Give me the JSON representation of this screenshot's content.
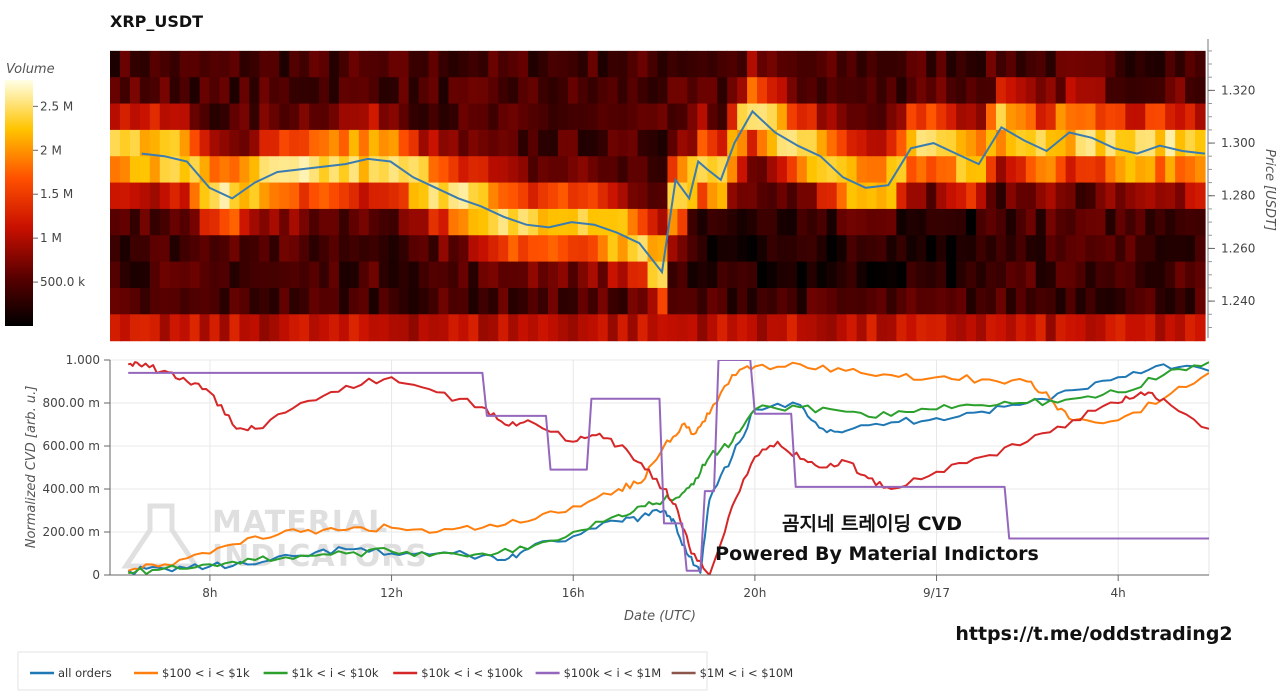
{
  "chart_data": [
    {
      "type": "heatmap",
      "title": "XRP_USDT",
      "ylabel": "Price [USDT]",
      "yticks": [
        1.32,
        1.3,
        1.28,
        1.26,
        1.24
      ],
      "ytick_labels": [
        "1.320",
        "1.300",
        "1.280",
        "1.260",
        "1.240"
      ],
      "ylim": [
        1.226,
        1.3395
      ],
      "price_bins": [
        1.33,
        1.32,
        1.31,
        1.3,
        1.29,
        1.28,
        1.27,
        1.26,
        1.25,
        1.24,
        1.23
      ],
      "colorbar": {
        "title": "Volume",
        "tick_values": [
          2500000,
          2000000,
          1500000,
          1000000,
          500000
        ],
        "tick_labels": [
          "2.5 M",
          "2 M",
          "1.5 M",
          "1 M",
          "500.0 k"
        ],
        "range": [
          0,
          2800000
        ]
      },
      "price_series": {
        "x": [
          6.5,
          7.0,
          7.5,
          8.0,
          8.5,
          9.0,
          9.5,
          10.0,
          10.5,
          11.0,
          11.5,
          12.0,
          12.5,
          13.0,
          13.5,
          14.0,
          14.5,
          15.0,
          15.5,
          16.0,
          16.5,
          17.0,
          17.5,
          18.0,
          18.3,
          18.6,
          18.8,
          19.0,
          19.3,
          19.6,
          20.0,
          20.5,
          21.0,
          21.5,
          22.0,
          22.5,
          23.0,
          23.5,
          24.0,
          24.5,
          25.0,
          25.5,
          26.0,
          26.5,
          27.0,
          27.5,
          28.0,
          28.5,
          29.0,
          29.5,
          30.0
        ],
        "y": [
          1.296,
          1.295,
          1.293,
          1.283,
          1.279,
          1.285,
          1.289,
          1.29,
          1.291,
          1.292,
          1.294,
          1.293,
          1.287,
          1.283,
          1.279,
          1.276,
          1.272,
          1.269,
          1.268,
          1.27,
          1.269,
          1.266,
          1.262,
          1.251,
          1.286,
          1.279,
          1.293,
          1.29,
          1.286,
          1.3,
          1.312,
          1.304,
          1.299,
          1.295,
          1.287,
          1.283,
          1.284,
          1.298,
          1.3,
          1.296,
          1.292,
          1.306,
          1.301,
          1.297,
          1.304,
          1.302,
          1.298,
          1.296,
          1.299,
          1.297,
          1.296
        ]
      },
      "line_color": "#3a7cb0"
    },
    {
      "type": "line",
      "xlabel": "Date (UTC)",
      "ylabel": "Normalized CVD [arb. u.]",
      "xlim": [
        5.8,
        30.0
      ],
      "ylim": [
        0,
        1.0
      ],
      "xticks": [
        8,
        12,
        16,
        20,
        24,
        28
      ],
      "xtick_labels": [
        "8h",
        "12h",
        "16h",
        "20h",
        "9/17",
        "4h"
      ],
      "yticks": [
        0,
        0.2,
        0.4,
        0.6,
        0.8,
        1.0
      ],
      "ytick_labels": [
        "0",
        "200.00 m",
        "400.00 m",
        "600.00 m",
        "800.00 m",
        "1.000"
      ],
      "grid": true,
      "legend_position": "bottom-left",
      "series": [
        {
          "name": "all orders",
          "color": "#1f77b4",
          "x": [
            6.2,
            7,
            8,
            9,
            10,
            11,
            12,
            13,
            14,
            14.5,
            15,
            16,
            17,
            17.5,
            18,
            18.2,
            18.5,
            18.8,
            19,
            19.5,
            20,
            21,
            21.5,
            22,
            23,
            24,
            25,
            26,
            27,
            28,
            29,
            30
          ],
          "y": [
            0.02,
            0.03,
            0.04,
            0.05,
            0.09,
            0.12,
            0.1,
            0.1,
            0.09,
            0.07,
            0.12,
            0.18,
            0.25,
            0.27,
            0.3,
            0.26,
            0.1,
            0.01,
            0.35,
            0.55,
            0.77,
            0.79,
            0.68,
            0.67,
            0.71,
            0.73,
            0.76,
            0.8,
            0.86,
            0.92,
            0.98,
            0.95
          ]
        },
        {
          "name": "$100 < i < $1k",
          "color": "#ff7f0e",
          "x": [
            6.2,
            7,
            8,
            9,
            10,
            11,
            12,
            13,
            14,
            15,
            16,
            17,
            17.5,
            18,
            18.4,
            18.7,
            19,
            19.5,
            20,
            21,
            22,
            23,
            24,
            25,
            26,
            26.5,
            27,
            28,
            29,
            30
          ],
          "y": [
            0.02,
            0.05,
            0.1,
            0.18,
            0.2,
            0.21,
            0.22,
            0.2,
            0.22,
            0.25,
            0.32,
            0.4,
            0.43,
            0.6,
            0.7,
            0.66,
            0.75,
            0.93,
            0.97,
            0.98,
            0.95,
            0.93,
            0.92,
            0.91,
            0.9,
            0.82,
            0.72,
            0.72,
            0.82,
            0.94
          ]
        },
        {
          "name": "$1k < i < $10k",
          "color": "#2ca02c",
          "x": [
            6.2,
            7,
            8,
            9,
            10,
            11,
            12,
            13,
            14,
            15,
            16,
            17,
            17.5,
            18,
            18.4,
            18.7,
            19,
            19.5,
            20,
            21,
            22,
            23,
            24,
            25,
            26,
            27,
            28,
            29,
            30
          ],
          "y": [
            0.01,
            0.03,
            0.05,
            0.07,
            0.09,
            0.1,
            0.11,
            0.1,
            0.1,
            0.12,
            0.2,
            0.28,
            0.32,
            0.35,
            0.38,
            0.45,
            0.55,
            0.62,
            0.77,
            0.78,
            0.76,
            0.74,
            0.77,
            0.79,
            0.8,
            0.82,
            0.85,
            0.93,
            0.99
          ]
        },
        {
          "name": "$10k < i < $100k",
          "color": "#d62728",
          "x": [
            6.2,
            6.5,
            7,
            7.5,
            8,
            8.5,
            9,
            10,
            11,
            12,
            13,
            14,
            14.5,
            15,
            16,
            16.5,
            17,
            17.5,
            18,
            18.3,
            18.6,
            19,
            19.5,
            20,
            20.5,
            21,
            21.5,
            22,
            22.5,
            23,
            24,
            25,
            26,
            27,
            28,
            28.5,
            29,
            30
          ],
          "y": [
            0.98,
            0.97,
            0.95,
            0.9,
            0.85,
            0.7,
            0.68,
            0.8,
            0.88,
            0.92,
            0.85,
            0.78,
            0.7,
            0.72,
            0.62,
            0.65,
            0.6,
            0.52,
            0.4,
            0.3,
            0.1,
            0.0,
            0.32,
            0.55,
            0.62,
            0.54,
            0.5,
            0.53,
            0.45,
            0.4,
            0.48,
            0.55,
            0.62,
            0.72,
            0.8,
            0.85,
            0.82,
            0.68
          ]
        },
        {
          "name": "$100k < i < $1M",
          "color": "#9467bd",
          "x": [
            6.2,
            14,
            14.1,
            15.4,
            15.5,
            16.3,
            16.4,
            17.9,
            18.0,
            18.4,
            18.5,
            18.8,
            18.9,
            19.1,
            19.2,
            19.9,
            20.0,
            20.8,
            20.9,
            25.5,
            25.6,
            30
          ],
          "y": [
            0.94,
            0.94,
            0.74,
            0.74,
            0.49,
            0.49,
            0.82,
            0.82,
            0.24,
            0.24,
            0.02,
            0.02,
            0.39,
            0.39,
            1.0,
            1.0,
            0.75,
            0.75,
            0.41,
            0.41,
            0.17,
            0.17
          ]
        },
        {
          "name": "$1M < i < $10M",
          "color": "#8c564b",
          "x": [],
          "y": []
        }
      ]
    }
  ],
  "overlay": {
    "line1": "곰지네 트레이딩 CVD",
    "line2": "Powered By Material Indictors",
    "url": "https://t.me/oddstrading2",
    "watermark_line1": "MATERIAL",
    "watermark_line2": "INDICATORS"
  }
}
